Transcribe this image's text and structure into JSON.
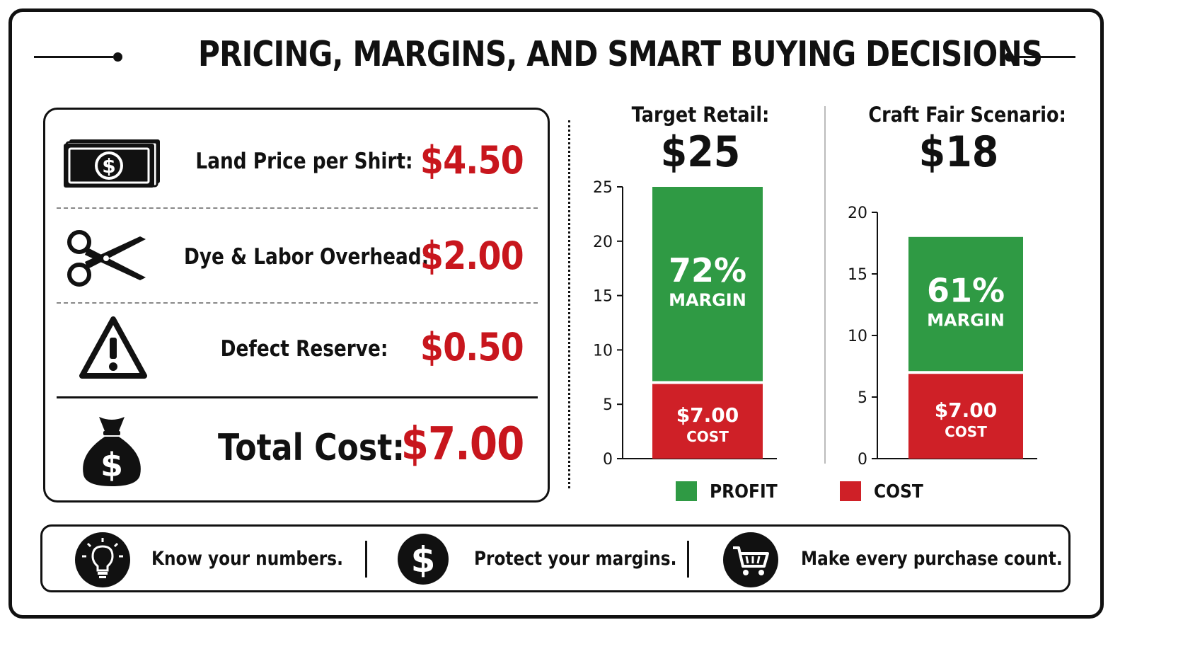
{
  "title": "PRICING, MARGINS, AND SMART BUYING DECISIONS",
  "cost_breakdown": [
    {
      "icon": "cash-icon",
      "label": "Land Price per Shirt:",
      "value": "$4.50"
    },
    {
      "icon": "scissors-icon",
      "label": "Dye & Labor Overhead:",
      "value": "$2.00"
    },
    {
      "icon": "warning-icon",
      "label": "Defect Reserve:",
      "value": "$0.50"
    }
  ],
  "total": {
    "icon": "money-bag-icon",
    "label": "Total Cost:",
    "value": "$7.00"
  },
  "colors": {
    "profit": "#2f9a44",
    "cost": "#cf2027",
    "value_red": "#c8161d",
    "ink": "#111111"
  },
  "chart_data": [
    {
      "type": "bar",
      "title": "Target Retail:",
      "price_label": "$25",
      "ylim": [
        0,
        25
      ],
      "yticks": [
        0,
        5,
        10,
        15,
        20,
        25
      ],
      "stacked": true,
      "series": [
        {
          "name": "COST",
          "value": 7.0,
          "label": "$7.00",
          "sublabel": "COST"
        },
        {
          "name": "PROFIT",
          "value": 18.0,
          "label": "72%",
          "sublabel": "MARGIN"
        }
      ]
    },
    {
      "type": "bar",
      "title": "Craft Fair Scenario:",
      "price_label": "$18",
      "ylim": [
        0,
        20
      ],
      "yticks": [
        0,
        5,
        10,
        15,
        20
      ],
      "stacked": true,
      "series": [
        {
          "name": "COST",
          "value": 7.0,
          "label": "$7.00",
          "sublabel": "COST"
        },
        {
          "name": "PROFIT",
          "value": 11.0,
          "label": "61%",
          "sublabel": "MARGIN"
        }
      ]
    }
  ],
  "legend": [
    {
      "label": "PROFIT",
      "color": "#2f9a44"
    },
    {
      "label": "COST",
      "color": "#cf2027"
    }
  ],
  "tips": [
    {
      "icon": "lightbulb-icon",
      "text": "Know your numbers."
    },
    {
      "icon": "dollar-coin-icon",
      "text": "Protect your margins."
    },
    {
      "icon": "shopping-cart-icon",
      "text": "Make every purchase count."
    }
  ]
}
